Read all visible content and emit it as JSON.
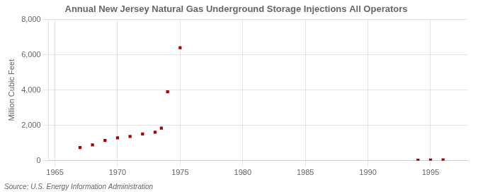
{
  "chart_data": {
    "type": "scatter",
    "title": "Annual New Jersey Natural Gas Underground Storage Injections All Operators",
    "ylabel": "Million Cubic Feet",
    "source": "Source: U.S. Energy Information Administration",
    "x": [
      1967,
      1968,
      1969,
      1970,
      1971,
      1972,
      1973,
      1973.5,
      1974,
      1975,
      1994,
      1995,
      1996
    ],
    "values": [
      750,
      900,
      1150,
      1300,
      1380,
      1520,
      1620,
      1850,
      3900,
      6400,
      30,
      35,
      45
    ],
    "color": "#aa0000",
    "marker": "square",
    "xlim": [
      1964.5,
      1998
    ],
    "xticks": [
      1965,
      1970,
      1975,
      1980,
      1985,
      1990,
      1995
    ],
    "ylim": [
      0,
      8000
    ],
    "yticks": [
      0,
      {
        "value": 2000,
        "label": "2,000"
      },
      {
        "value": 4000,
        "label": "4,000"
      },
      {
        "value": 6000,
        "label": "6,000"
      },
      {
        "value": 8000,
        "label": "8,000"
      }
    ],
    "grid": true
  }
}
